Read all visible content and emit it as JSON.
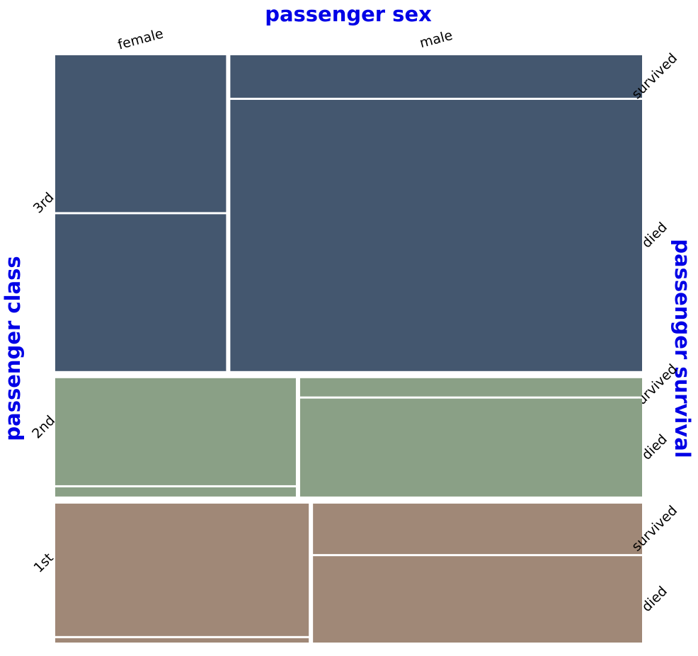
{
  "chart_data": {
    "type": "mosaic",
    "x_label": "passenger sex",
    "y_label": "passenger class",
    "y2_label": "passenger survival",
    "sexes": [
      "female",
      "male"
    ],
    "outcomes": [
      "survived",
      "died"
    ],
    "series": [
      {
        "name": "3rd",
        "color": "#44576f",
        "values": [
          [
            72,
            72
          ],
          [
            47,
            300
          ]
        ]
      },
      {
        "name": "2nd",
        "color": "#8aa086",
        "values": [
          [
            70,
            6
          ],
          [
            17,
            91
          ]
        ]
      },
      {
        "name": "1st",
        "color": "#a08877",
        "values": [
          [
            91,
            3
          ],
          [
            45,
            77
          ]
        ]
      }
    ]
  }
}
